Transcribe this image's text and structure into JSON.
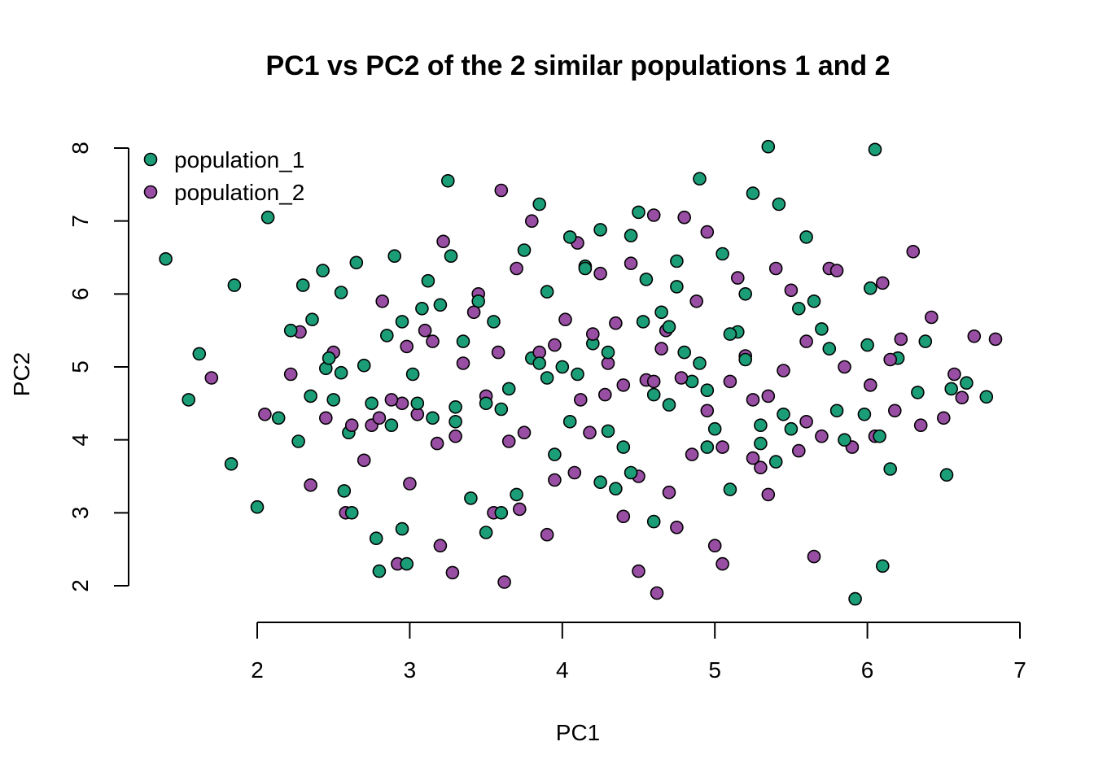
{
  "chart_data": {
    "type": "scatter",
    "title": "PC1 vs PC2 of the 2 similar populations 1 and 2",
    "xlabel": "PC1",
    "ylabel": "PC2",
    "xlim": [
      1.0,
      7.0
    ],
    "ylim": [
      1.7,
      8.1
    ],
    "xticks": [
      2,
      3,
      4,
      5,
      6,
      7
    ],
    "yticks": [
      2,
      3,
      4,
      5,
      6,
      7,
      8
    ],
    "grid": false,
    "legend_position": "top-left",
    "series": [
      {
        "name": "population_1",
        "color": "#1b9e77",
        "x": [
          1.4,
          1.55,
          1.62,
          1.83,
          1.85,
          2.0,
          2.07,
          2.14,
          2.22,
          2.27,
          2.3,
          2.35,
          2.36,
          2.43,
          2.45,
          2.5,
          2.55,
          2.57,
          2.6,
          2.65,
          2.7,
          2.75,
          2.78,
          2.8,
          2.85,
          2.9,
          2.95,
          2.98,
          3.02,
          3.08,
          3.12,
          3.2,
          3.25,
          3.27,
          3.3,
          3.4,
          3.45,
          3.5,
          3.55,
          3.6,
          3.75,
          3.8,
          3.85,
          3.9,
          3.95,
          4.05,
          4.1,
          4.2,
          4.25,
          4.3,
          4.35,
          4.45,
          4.5,
          4.53,
          4.6,
          4.7,
          4.75,
          4.8,
          4.9,
          4.95,
          5.05,
          5.1,
          5.2,
          5.25,
          5.3,
          5.35,
          5.42,
          5.55,
          5.6,
          5.75,
          5.92,
          5.98,
          6.02,
          6.05,
          6.1,
          6.15,
          6.2,
          6.33,
          6.38,
          6.52,
          6.55,
          6.65,
          6.78,
          2.47,
          2.62,
          2.88,
          3.35,
          3.7,
          4.15,
          4.4,
          4.65,
          4.85,
          5.15,
          5.45,
          5.7,
          5.85,
          6.0,
          3.05,
          3.6,
          4.55,
          5.0,
          2.95,
          3.15,
          4.0,
          4.75,
          5.4,
          5.65,
          3.9,
          4.45,
          5.2,
          2.55,
          3.5,
          4.3,
          4.95,
          5.8,
          6.08,
          3.3,
          4.15,
          4.9,
          5.5,
          3.65,
          4.25,
          4.6,
          5.1,
          3.85,
          4.05,
          4.7,
          5.3
        ],
        "y": [
          6.48,
          4.55,
          5.18,
          3.67,
          6.12,
          3.08,
          7.05,
          4.3,
          5.5,
          3.98,
          6.12,
          4.6,
          5.65,
          6.32,
          4.98,
          4.55,
          6.02,
          3.3,
          4.1,
          6.43,
          5.02,
          4.5,
          2.65,
          2.2,
          5.43,
          6.52,
          2.78,
          2.3,
          4.9,
          5.8,
          6.18,
          5.85,
          7.55,
          6.52,
          4.25,
          3.2,
          5.9,
          2.73,
          5.62,
          4.42,
          6.6,
          5.12,
          7.23,
          6.03,
          3.8,
          6.78,
          4.9,
          5.32,
          6.88,
          4.12,
          3.33,
          6.8,
          7.12,
          5.62,
          2.88,
          4.48,
          6.1,
          5.2,
          7.58,
          4.68,
          6.55,
          3.32,
          6.0,
          7.38,
          4.2,
          8.02,
          7.23,
          5.8,
          6.78,
          5.25,
          1.82,
          4.35,
          6.08,
          7.98,
          2.27,
          3.6,
          5.12,
          4.65,
          5.35,
          3.52,
          4.7,
          4.78,
          4.59,
          5.12,
          3.0,
          4.2,
          5.35,
          3.25,
          6.38,
          3.9,
          5.75,
          4.8,
          5.48,
          4.35,
          5.52,
          4.0,
          5.3,
          4.5,
          3.0,
          6.2,
          4.15,
          5.62,
          4.3,
          5.0,
          6.45,
          3.7,
          5.9,
          4.85,
          3.55,
          5.1,
          4.92,
          4.5,
          5.2,
          3.9,
          4.4,
          4.05,
          4.45,
          6.35,
          5.05,
          4.15,
          4.7,
          3.42,
          4.62,
          5.45,
          5.05,
          4.25,
          5.55,
          3.95
        ]
      },
      {
        "name": "population_2",
        "color": "#984ea3",
        "x": [
          1.7,
          2.05,
          2.22,
          2.28,
          2.35,
          2.45,
          2.5,
          2.58,
          2.7,
          2.75,
          2.82,
          2.92,
          2.95,
          3.0,
          3.1,
          3.2,
          3.22,
          3.28,
          3.35,
          3.45,
          3.55,
          3.6,
          3.62,
          3.7,
          3.75,
          3.8,
          3.9,
          3.95,
          4.1,
          4.18,
          4.25,
          4.3,
          4.4,
          4.45,
          4.5,
          4.6,
          4.62,
          4.68,
          4.75,
          4.8,
          4.88,
          4.95,
          5.05,
          5.15,
          5.25,
          5.35,
          5.4,
          5.5,
          5.6,
          5.65,
          5.75,
          5.8,
          5.9,
          6.05,
          6.1,
          6.18,
          6.22,
          6.3,
          6.35,
          6.42,
          6.5,
          6.57,
          6.62,
          6.7,
          6.84,
          3.18,
          2.88,
          3.42,
          4.08,
          4.55,
          5.0,
          5.55,
          2.62,
          3.05,
          3.72,
          4.35,
          4.7,
          5.2,
          5.7,
          6.02,
          3.5,
          4.2,
          4.85,
          5.45,
          2.98,
          3.65,
          4.02,
          4.5,
          5.1,
          5.85,
          3.3,
          4.12,
          4.65,
          5.3,
          3.85,
          4.4,
          5.05,
          5.6,
          2.8,
          3.95,
          4.78,
          5.35,
          6.15,
          3.58,
          4.28,
          4.95,
          3.15,
          4.6,
          5.25
        ],
        "y": [
          4.85,
          4.35,
          4.9,
          5.48,
          3.38,
          4.3,
          5.2,
          3.0,
          3.72,
          4.2,
          5.9,
          2.3,
          4.5,
          3.4,
          5.5,
          2.55,
          6.72,
          2.18,
          5.05,
          6.0,
          3.0,
          7.42,
          2.05,
          6.35,
          4.1,
          7.0,
          2.7,
          5.3,
          6.7,
          4.1,
          6.28,
          5.05,
          2.95,
          6.42,
          2.2,
          7.08,
          1.9,
          5.5,
          2.8,
          7.05,
          5.9,
          6.85,
          2.3,
          6.22,
          4.55,
          3.25,
          6.35,
          6.05,
          5.35,
          2.4,
          6.35,
          6.32,
          3.9,
          4.05,
          6.15,
          4.4,
          5.38,
          6.58,
          4.2,
          5.68,
          4.3,
          4.9,
          4.58,
          5.42,
          5.38,
          3.95,
          4.55,
          5.75,
          3.55,
          4.82,
          2.55,
          3.85,
          4.2,
          4.35,
          3.05,
          5.6,
          3.28,
          5.15,
          4.05,
          4.75,
          4.6,
          5.45,
          3.8,
          4.95,
          5.28,
          3.98,
          5.65,
          3.5,
          4.8,
          5.0,
          4.05,
          4.55,
          5.25,
          3.62,
          5.2,
          4.75,
          3.9,
          4.25,
          4.3,
          3.45,
          4.85,
          4.6,
          5.1,
          5.2,
          4.62,
          4.4,
          5.35,
          4.8,
          3.75
        ]
      }
    ]
  }
}
